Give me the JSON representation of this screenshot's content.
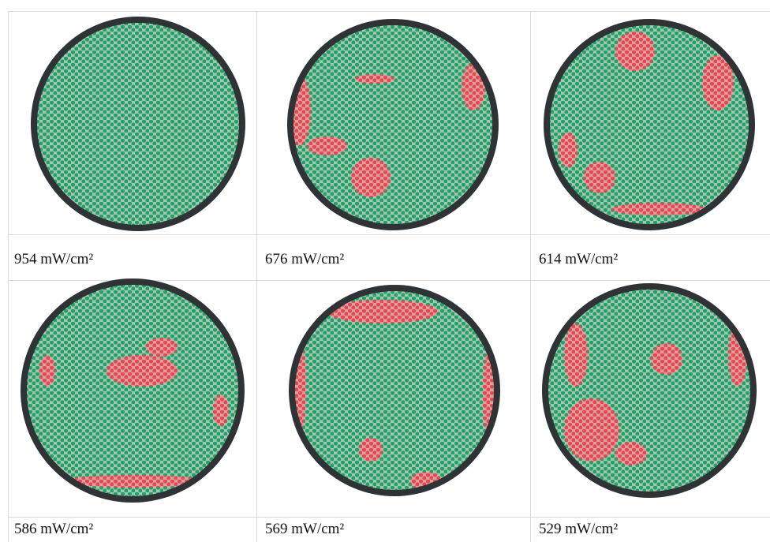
{
  "panels": [
    {
      "caption": "954 mW/cm²"
    },
    {
      "caption": "676 mW/cm²"
    },
    {
      "caption": "614 mW/cm²"
    },
    {
      "caption": "586 mW/cm²"
    },
    {
      "caption": "569 mW/cm²"
    },
    {
      "caption": "529 mW/cm²"
    }
  ]
}
